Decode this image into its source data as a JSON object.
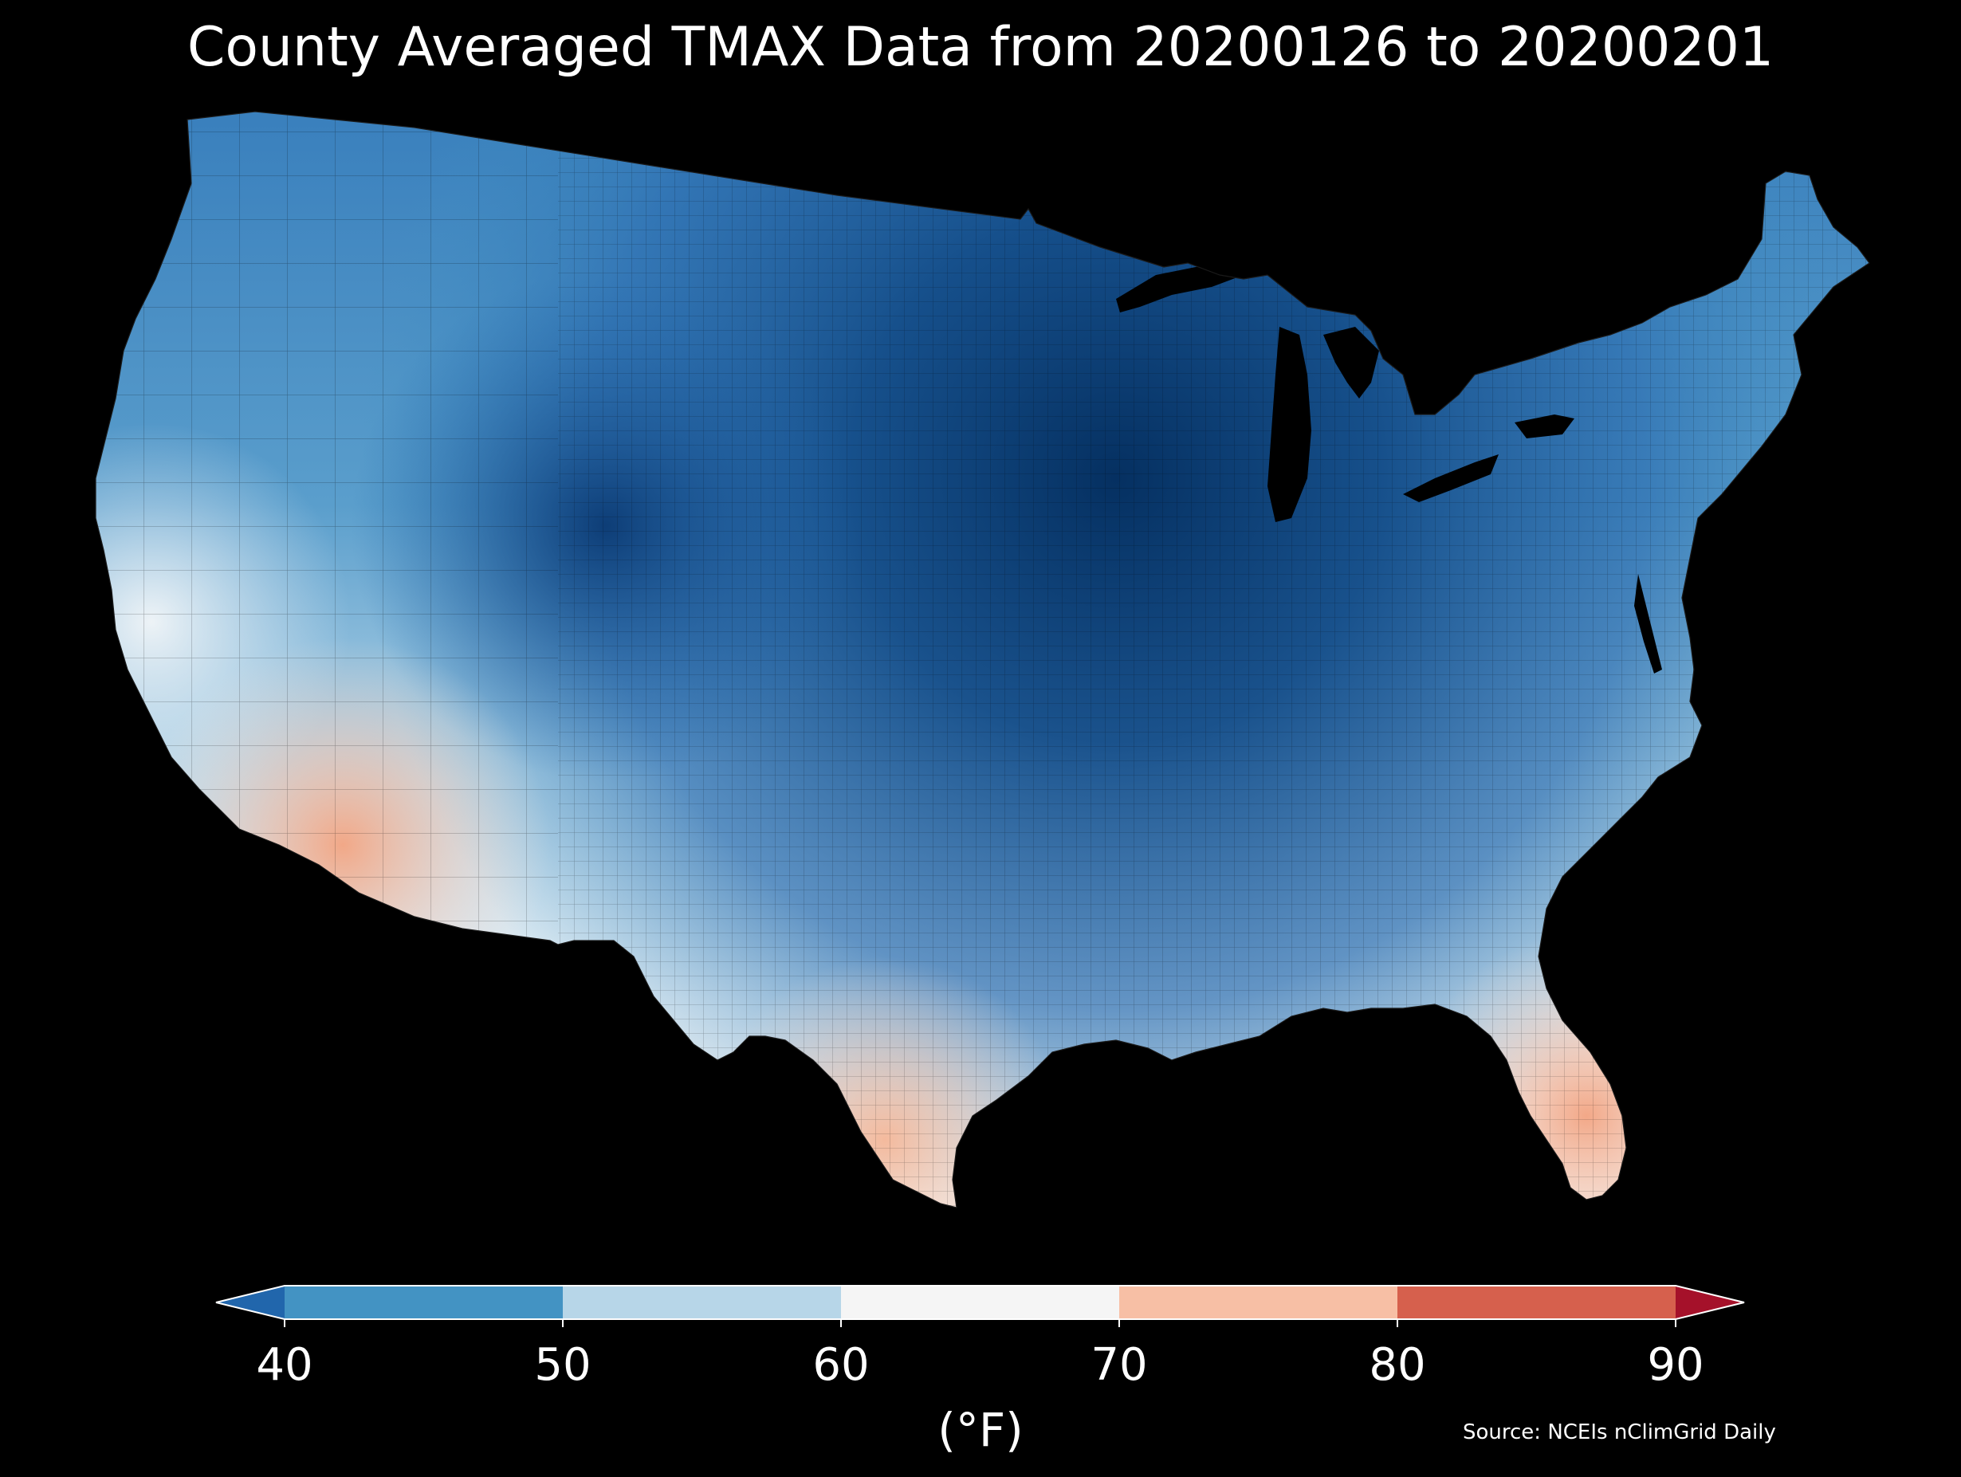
{
  "title": "County Averaged TMAX Data from 20200126 to 20200201",
  "source": "Source: NCEIs nClimGrid Daily",
  "colorbar": {
    "label": "(°F)",
    "ticks": [
      "40",
      "50",
      "60",
      "70",
      "80",
      "90"
    ],
    "bins": [
      {
        "range": [
          40,
          50
        ],
        "color": "#4393c3"
      },
      {
        "range": [
          50,
          60
        ],
        "color": "#b7d6e8"
      },
      {
        "range": [
          60,
          70
        ],
        "color": "#f5f5f5"
      },
      {
        "range": [
          70,
          80
        ],
        "color": "#f7bfa5"
      },
      {
        "range": [
          80,
          90
        ],
        "color": "#d6604d"
      }
    ],
    "under_color": "#2166ac",
    "over_color": "#a5112a"
  },
  "chart_data": {
    "type": "heatmap",
    "subject": "contiguous United States counties",
    "variable": "TMAX",
    "units": "°F",
    "range": [
      40,
      90
    ],
    "colormap": "RdBu_r",
    "extend": "both"
  }
}
